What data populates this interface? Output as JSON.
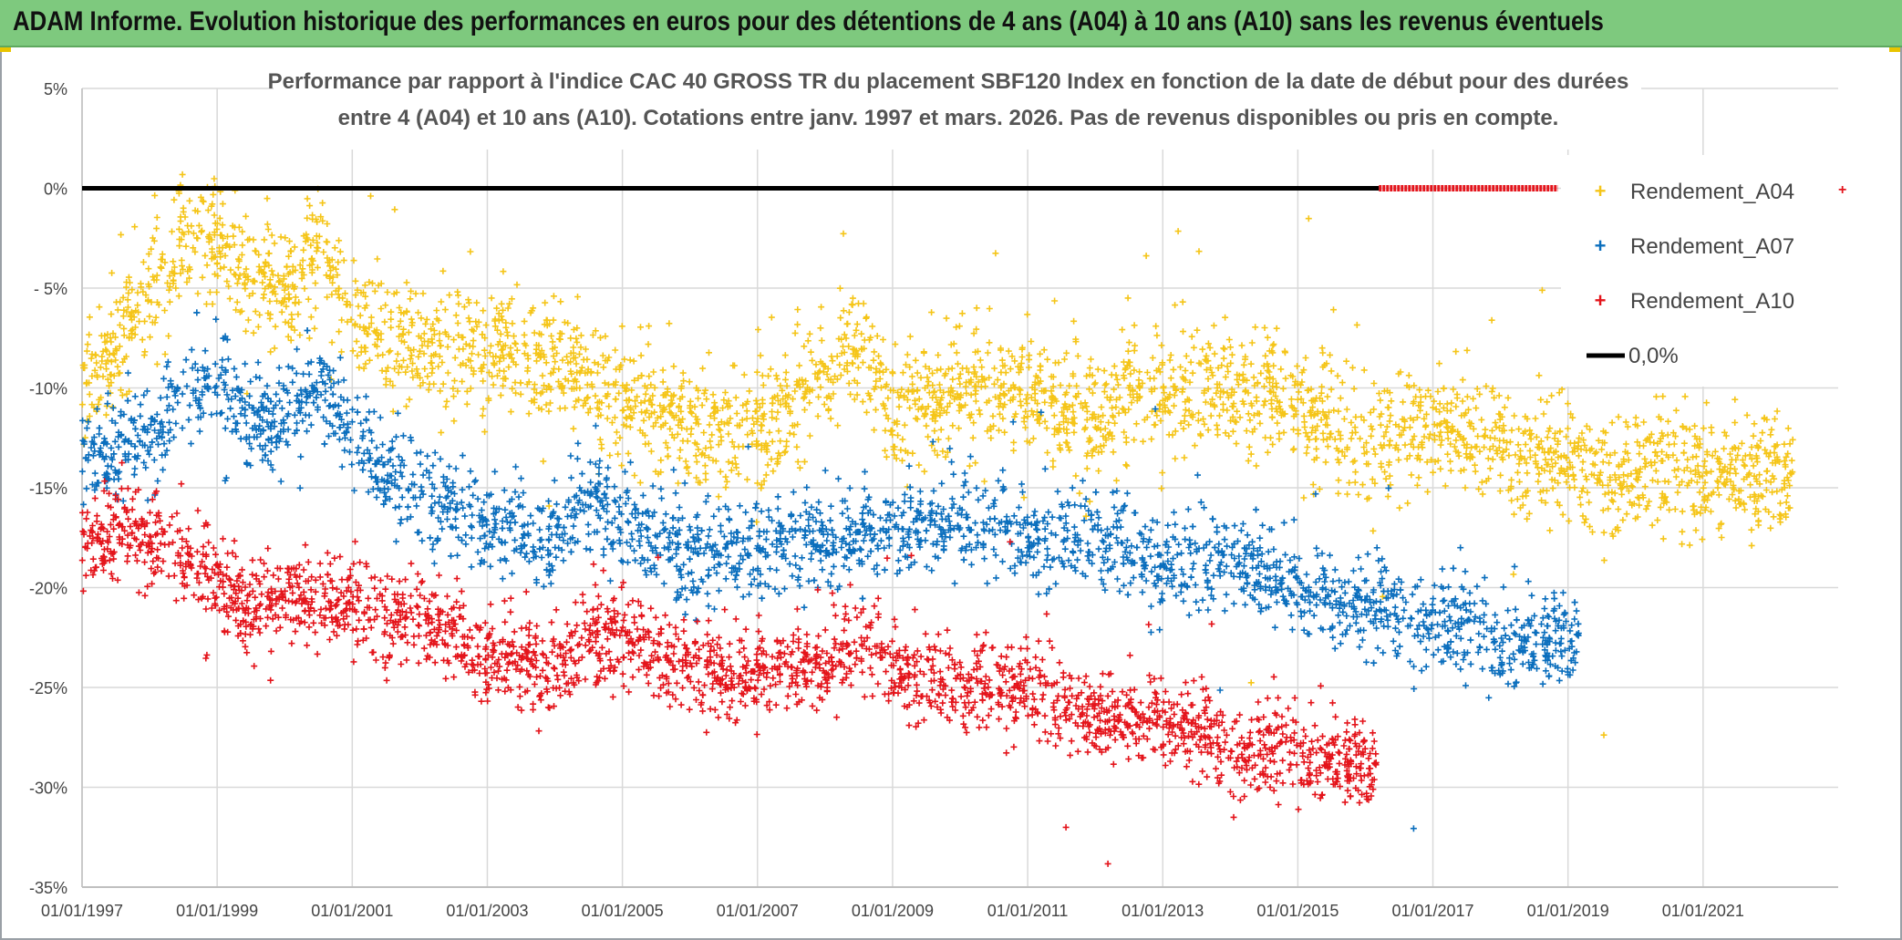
{
  "header": {
    "title": "ADAM Informe. Evolution historique des performances en euros pour des détentions de 4 ans (A04) à 10 ans (A10) sans les revenus éventuels"
  },
  "colors": {
    "banner": "#7ec97e",
    "a04": "#f5c518",
    "a07": "#0a6ebd",
    "a10": "#e4141b",
    "zero_line": "#000000",
    "grid": "#d9d9d9"
  },
  "chart_data": {
    "type": "scatter",
    "title_lines": [
      "Performance par rapport à l'indice CAC 40 GROSS TR  du placement SBF120 Index en fonction de la date de début pour des durées",
      "entre 4 (A04) et 10 ans (A10). Cotations entre janv. 1997 et mars. 2026. Pas de revenus disponibles ou pris en compte."
    ],
    "xlabel": "",
    "ylabel": "",
    "x_range": [
      "01/01/1997",
      "01/01/2023"
    ],
    "x_ticks": [
      "01/01/1997",
      "01/01/1999",
      "01/01/2001",
      "01/01/2003",
      "01/01/2005",
      "01/01/2007",
      "01/01/2009",
      "01/01/2011",
      "01/01/2013",
      "01/01/2015",
      "01/01/2017",
      "01/01/2019",
      "01/01/2021"
    ],
    "y_range": [
      -35,
      5
    ],
    "y_ticks": [
      5,
      0,
      -5,
      -10,
      -15,
      -20,
      -25,
      -30,
      -35
    ],
    "y_tick_labels": [
      "5%",
      "0%",
      "- 5%",
      "-10%",
      "-15%",
      "-20%",
      "-25%",
      "-30%",
      "-35%"
    ],
    "grid": true,
    "legend_position": "right",
    "series": [
      {
        "name": "Rendement_A04",
        "color": "#f5c518",
        "x_start": "01/01/1997",
        "x_end": "01/05/2022",
        "trend": [
          [
            1997.0,
            -10.0
          ],
          [
            1997.5,
            -7.5
          ],
          [
            1998.0,
            -5.5
          ],
          [
            1998.5,
            -3.0
          ],
          [
            1999.0,
            -2.5
          ],
          [
            1999.5,
            -5.0
          ],
          [
            2000.0,
            -5.0
          ],
          [
            2000.5,
            -3.0
          ],
          [
            2001.0,
            -6.5
          ],
          [
            2002.0,
            -8.0
          ],
          [
            2003.0,
            -8.0
          ],
          [
            2004.0,
            -9.0
          ],
          [
            2005.0,
            -10.5
          ],
          [
            2006.0,
            -12.0
          ],
          [
            2007.0,
            -12.0
          ],
          [
            2008.0,
            -9.5
          ],
          [
            2008.5,
            -8.0
          ],
          [
            2009.0,
            -11.0
          ],
          [
            2010.0,
            -10.0
          ],
          [
            2011.0,
            -10.5
          ],
          [
            2012.0,
            -11.5
          ],
          [
            2013.0,
            -10.0
          ],
          [
            2014.0,
            -10.0
          ],
          [
            2015.0,
            -11.0
          ],
          [
            2016.0,
            -12.5
          ],
          [
            2017.0,
            -11.5
          ],
          [
            2018.0,
            -13.0
          ],
          [
            2019.0,
            -14.0
          ],
          [
            2020.0,
            -14.0
          ],
          [
            2021.0,
            -14.5
          ],
          [
            2022.35,
            -14.5
          ]
        ],
        "spread": 2.0
      },
      {
        "name": "Rendement_A07",
        "color": "#0a6ebd",
        "x_start": "01/01/1997",
        "x_end": "01/03/2019",
        "trend": [
          [
            1997.0,
            -13.5
          ],
          [
            1998.0,
            -12.5
          ],
          [
            1998.5,
            -10.5
          ],
          [
            1999.0,
            -9.5
          ],
          [
            1999.5,
            -11.5
          ],
          [
            2000.0,
            -11.5
          ],
          [
            2000.5,
            -10.0
          ],
          [
            2001.0,
            -12.0
          ],
          [
            2001.5,
            -14.0
          ],
          [
            2002.0,
            -15.0
          ],
          [
            2003.0,
            -17.0
          ],
          [
            2004.0,
            -17.5
          ],
          [
            2004.5,
            -15.5
          ],
          [
            2005.0,
            -16.5
          ],
          [
            2006.0,
            -18.5
          ],
          [
            2007.0,
            -18.0
          ],
          [
            2008.0,
            -17.5
          ],
          [
            2009.0,
            -17.5
          ],
          [
            2010.0,
            -16.5
          ],
          [
            2011.0,
            -17.5
          ],
          [
            2012.0,
            -17.5
          ],
          [
            2013.0,
            -19.0
          ],
          [
            2014.0,
            -18.5
          ],
          [
            2015.0,
            -20.0
          ],
          [
            2016.0,
            -21.0
          ],
          [
            2017.0,
            -21.5
          ],
          [
            2018.0,
            -23.0
          ],
          [
            2019.2,
            -22.5
          ]
        ],
        "spread": 1.6
      },
      {
        "name": "Rendement_A10",
        "color": "#e4141b",
        "x_start": "01/01/1997",
        "x_end": "01/03/2016",
        "trend": [
          [
            1997.0,
            -18.0
          ],
          [
            1997.5,
            -17.0
          ],
          [
            1998.0,
            -17.5
          ],
          [
            1999.0,
            -19.5
          ],
          [
            1999.5,
            -21.0
          ],
          [
            2000.0,
            -20.5
          ],
          [
            2001.0,
            -20.5
          ],
          [
            2001.5,
            -21.5
          ],
          [
            2002.0,
            -21.5
          ],
          [
            2003.0,
            -23.5
          ],
          [
            2004.0,
            -24.0
          ],
          [
            2004.5,
            -22.5
          ],
          [
            2005.0,
            -22.5
          ],
          [
            2006.0,
            -24.0
          ],
          [
            2007.0,
            -24.5
          ],
          [
            2008.0,
            -24.0
          ],
          [
            2008.5,
            -22.5
          ],
          [
            2009.0,
            -24.0
          ],
          [
            2010.0,
            -25.0
          ],
          [
            2011.0,
            -25.0
          ],
          [
            2012.0,
            -26.5
          ],
          [
            2013.0,
            -26.5
          ],
          [
            2014.0,
            -28.0
          ],
          [
            2015.0,
            -28.5
          ],
          [
            2016.2,
            -29.0
          ]
        ],
        "spread": 1.5
      },
      {
        "name": "0,0%",
        "color": "#000000",
        "type": "line",
        "x": [
          1997.0,
          2016.2
        ],
        "y": [
          0,
          0
        ],
        "continuation": {
          "x": [
            2016.2,
            2018.85
          ],
          "y": [
            0,
            0
          ],
          "color": "#e4141b"
        }
      }
    ]
  }
}
